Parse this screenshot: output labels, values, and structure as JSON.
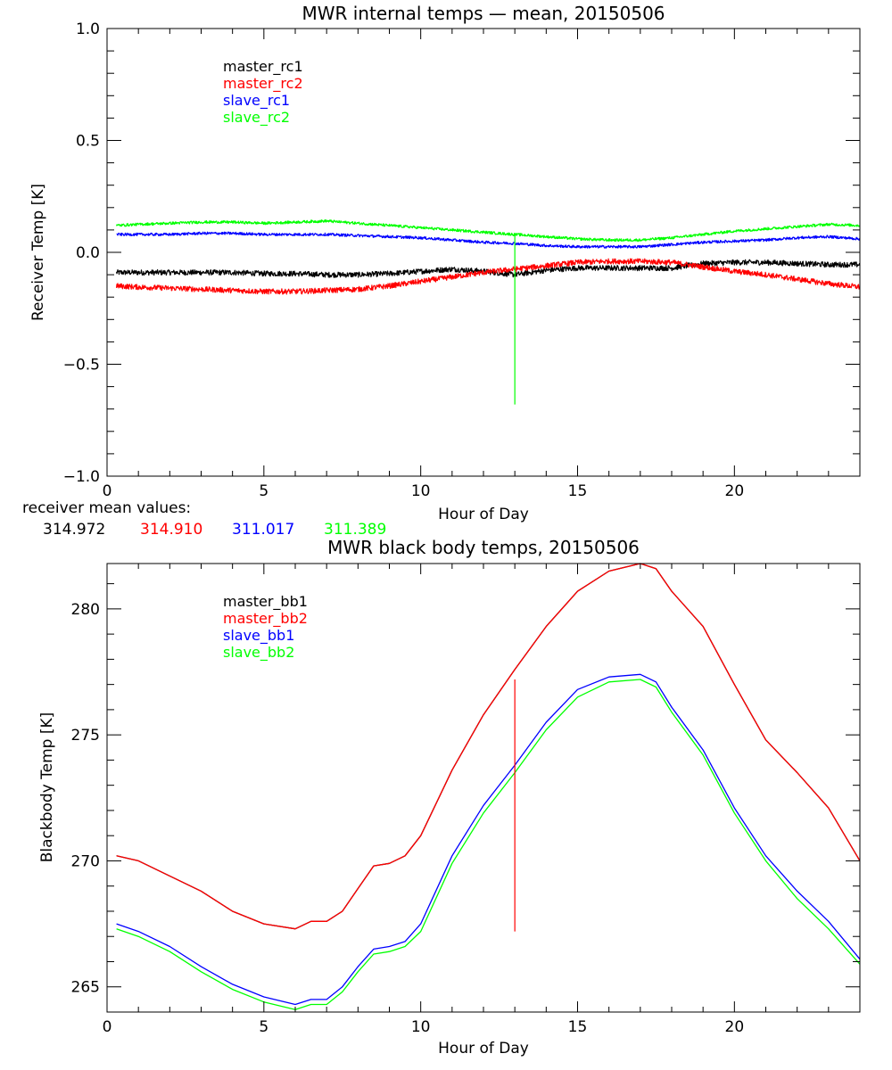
{
  "chart_data": [
    {
      "type": "line",
      "title": "MWR internal temps — mean, 20150506",
      "xlabel": "Hour of Day",
      "ylabel": "Receiver Temp [K]",
      "xlim": [
        0,
        24
      ],
      "ylim": [
        -1.0,
        1.0
      ],
      "x_ticks": [
        0,
        5,
        10,
        15,
        20
      ],
      "x_tick_labels": [
        "0",
        "5",
        "10",
        "15",
        "20"
      ],
      "y_ticks": [
        -1.0,
        -0.5,
        0.0,
        0.5,
        1.0
      ],
      "y_tick_labels": [
        "−1.0",
        "−0.5",
        "0.0",
        "0.5",
        "1.0"
      ],
      "grid": false,
      "legend_position": "top-left",
      "series": [
        {
          "name": "master_rc1",
          "color": "#000000",
          "noise": 0.012,
          "x": [
            0.3,
            1,
            2,
            3,
            4,
            5,
            6,
            7,
            8,
            9,
            10,
            11,
            12,
            13,
            14,
            15,
            16,
            17,
            18,
            19,
            20,
            21,
            22,
            23,
            24
          ],
          "y": [
            -0.09,
            -0.09,
            -0.09,
            -0.09,
            -0.09,
            -0.095,
            -0.095,
            -0.1,
            -0.1,
            -0.095,
            -0.085,
            -0.075,
            -0.085,
            -0.1,
            -0.08,
            -0.07,
            -0.07,
            -0.07,
            -0.07,
            -0.05,
            -0.045,
            -0.045,
            -0.05,
            -0.055,
            -0.055
          ]
        },
        {
          "name": "master_rc2",
          "color": "#ff0000",
          "noise": 0.012,
          "x": [
            0.3,
            1,
            2,
            3,
            4,
            5,
            6,
            7,
            8,
            9,
            10,
            11,
            12,
            13,
            14,
            15,
            16,
            17,
            18,
            19,
            20,
            21,
            22,
            23,
            24
          ],
          "y": [
            -0.15,
            -0.155,
            -0.16,
            -0.165,
            -0.17,
            -0.175,
            -0.175,
            -0.17,
            -0.165,
            -0.15,
            -0.13,
            -0.11,
            -0.09,
            -0.075,
            -0.06,
            -0.045,
            -0.04,
            -0.04,
            -0.045,
            -0.065,
            -0.085,
            -0.1,
            -0.12,
            -0.14,
            -0.155
          ]
        },
        {
          "name": "slave_rc1",
          "color": "#0000ff",
          "noise": 0.006,
          "x": [
            0.3,
            1,
            2,
            3,
            4,
            5,
            6,
            7,
            8,
            9,
            10,
            11,
            12,
            13,
            14,
            15,
            16,
            17,
            18,
            19,
            20,
            21,
            22,
            23,
            24
          ],
          "y": [
            0.08,
            0.08,
            0.08,
            0.085,
            0.085,
            0.08,
            0.08,
            0.08,
            0.075,
            0.07,
            0.065,
            0.055,
            0.045,
            0.04,
            0.03,
            0.025,
            0.025,
            0.025,
            0.035,
            0.045,
            0.05,
            0.055,
            0.065,
            0.07,
            0.06
          ]
        },
        {
          "name": "slave_rc2",
          "color": "#00ff00",
          "noise": 0.006,
          "x": [
            0.3,
            1,
            2,
            3,
            4,
            5,
            6,
            7,
            8,
            9,
            10,
            11,
            12,
            13,
            14,
            15,
            16,
            17,
            18,
            19,
            20,
            21,
            22,
            23,
            24
          ],
          "y": [
            0.12,
            0.125,
            0.13,
            0.135,
            0.135,
            0.13,
            0.135,
            0.14,
            0.13,
            0.12,
            0.11,
            0.1,
            0.09,
            0.08,
            0.07,
            0.06,
            0.055,
            0.055,
            0.065,
            0.08,
            0.095,
            0.105,
            0.115,
            0.125,
            0.12
          ]
        }
      ],
      "vertical_line": {
        "x": 13.0,
        "y_start": 0.08,
        "y_end": -0.68,
        "color": "#00ff00"
      },
      "means_label": "receiver mean values:",
      "mean_values": [
        {
          "value": "314.972",
          "color": "#000000"
        },
        {
          "value": "314.910",
          "color": "#ff0000"
        },
        {
          "value": "311.017",
          "color": "#0000ff"
        },
        {
          "value": "311.389",
          "color": "#00ff00"
        }
      ]
    },
    {
      "type": "line",
      "title": "MWR black body temps, 20150506",
      "xlabel": "Hour of Day",
      "ylabel": "Blackbody Temp [K]",
      "xlim": [
        0,
        24
      ],
      "ylim": [
        264.0,
        281.8
      ],
      "x_ticks": [
        0,
        5,
        10,
        15,
        20
      ],
      "x_tick_labels": [
        "0",
        "5",
        "10",
        "15",
        "20"
      ],
      "y_ticks": [
        265,
        270,
        275,
        280
      ],
      "y_tick_labels": [
        "265",
        "270",
        "275",
        "280"
      ],
      "grid": false,
      "legend_position": "top-left",
      "series": [
        {
          "name": "master_bb1",
          "color": "#000000",
          "x": [
            0.3,
            1,
            2,
            3,
            4,
            5,
            6,
            6.5,
            7,
            7.5,
            8,
            8.5,
            9,
            9.5,
            10,
            11,
            12,
            13,
            14,
            15,
            16,
            17,
            17.5,
            18,
            19,
            20,
            21,
            22,
            23,
            24
          ],
          "y": [
            270.2,
            270.0,
            269.4,
            268.8,
            268.0,
            267.5,
            267.3,
            267.6,
            267.6,
            268.0,
            268.9,
            269.8,
            269.9,
            270.2,
            271.0,
            273.6,
            275.8,
            277.6,
            279.3,
            280.7,
            281.5,
            281.8,
            281.6,
            280.7,
            279.3,
            277.0,
            274.8,
            273.5,
            272.1,
            270.0
          ]
        },
        {
          "name": "master_bb2",
          "color": "#ff0000",
          "x": [
            0.3,
            1,
            2,
            3,
            4,
            5,
            6,
            6.5,
            7,
            7.5,
            8,
            8.5,
            9,
            9.5,
            10,
            11,
            12,
            13,
            14,
            15,
            16,
            17,
            17.5,
            18,
            19,
            20,
            21,
            22,
            23,
            24
          ],
          "y": [
            270.2,
            270.0,
            269.4,
            268.8,
            268.0,
            267.5,
            267.3,
            267.6,
            267.6,
            268.0,
            268.9,
            269.8,
            269.9,
            270.2,
            271.0,
            273.6,
            275.8,
            277.6,
            279.3,
            280.7,
            281.5,
            281.8,
            281.6,
            280.7,
            279.3,
            277.0,
            274.8,
            273.5,
            272.1,
            270.0
          ]
        },
        {
          "name": "slave_bb1",
          "color": "#0000ff",
          "x": [
            0.3,
            1,
            2,
            3,
            4,
            5,
            6,
            6.5,
            7,
            7.5,
            8,
            8.5,
            9,
            9.5,
            10,
            11,
            12,
            13,
            14,
            15,
            16,
            17,
            17.5,
            18,
            19,
            20,
            21,
            22,
            23,
            24
          ],
          "y": [
            267.5,
            267.2,
            266.6,
            265.8,
            265.1,
            264.6,
            264.3,
            264.5,
            264.5,
            265.0,
            265.8,
            266.5,
            266.6,
            266.8,
            267.5,
            270.2,
            272.2,
            273.8,
            275.5,
            276.8,
            277.3,
            277.4,
            277.1,
            276.1,
            274.4,
            272.1,
            270.2,
            268.8,
            267.6,
            266.1
          ]
        },
        {
          "name": "slave_bb2",
          "color": "#00ff00",
          "x": [
            0.3,
            1,
            2,
            3,
            4,
            5,
            6,
            6.5,
            7,
            7.5,
            8,
            8.5,
            9,
            9.5,
            10,
            11,
            12,
            13,
            14,
            15,
            16,
            17,
            17.5,
            18,
            19,
            20,
            21,
            22,
            23,
            24
          ],
          "y": [
            267.3,
            267.0,
            266.4,
            265.6,
            264.9,
            264.4,
            264.1,
            264.3,
            264.3,
            264.8,
            265.6,
            266.3,
            266.4,
            266.6,
            267.2,
            269.9,
            271.9,
            273.5,
            275.2,
            276.5,
            277.1,
            277.2,
            276.9,
            275.9,
            274.2,
            271.9,
            270.0,
            268.5,
            267.3,
            265.9
          ]
        }
      ],
      "vertical_line": {
        "x": 13.0,
        "y_start": 277.2,
        "y_end": 267.2,
        "color": "#ff0000"
      }
    }
  ]
}
